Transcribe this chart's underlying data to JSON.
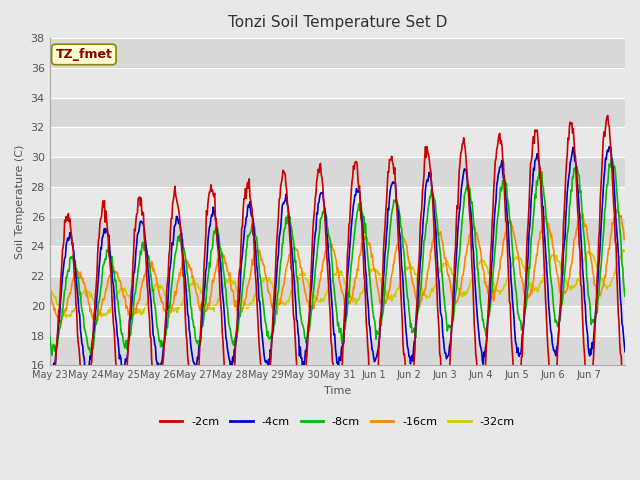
{
  "title": "Tonzi Soil Temperature Set D",
  "xlabel": "Time",
  "ylabel": "Soil Temperature (C)",
  "ylim": [
    16,
    38
  ],
  "yticks": [
    16,
    18,
    20,
    22,
    24,
    26,
    28,
    30,
    32,
    34,
    36,
    38
  ],
  "xtick_labels": [
    "May 23",
    "May 24",
    "May 25",
    "May 26",
    "May 27",
    "May 28",
    "May 29",
    "May 30",
    "May 31",
    "Jun 1",
    "Jun 2",
    "Jun 3",
    "Jun 4",
    "Jun 5",
    "Jun 6",
    "Jun 7"
  ],
  "legend_labels": [
    "-2cm",
    "-4cm",
    "-8cm",
    "-16cm",
    "-32cm"
  ],
  "legend_colors": [
    "#cc0000",
    "#0000cc",
    "#00bb00",
    "#ff8800",
    "#cccc00"
  ],
  "label_box_text": "TZ_fmet",
  "label_box_color": "#ffffcc",
  "label_box_text_color": "#880000",
  "bg_color": "#e8e8e8",
  "plot_bg_color": "#f0f0f0",
  "n_days": 16,
  "pts_per_day": 48,
  "trend_slope": 0.12
}
